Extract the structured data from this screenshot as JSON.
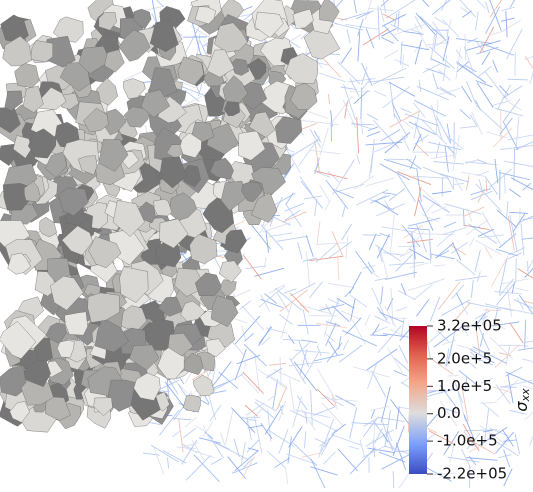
{
  "colorbar": {
    "label": "σ",
    "label_sub": "xx",
    "range": [
      -220000,
      320000
    ],
    "ticks": [
      {
        "value": 320000,
        "label": "3.2e+05"
      },
      {
        "value": 200000,
        "label": "2.0e+5"
      },
      {
        "value": 100000,
        "label": "1.0e+5"
      },
      {
        "value": 0,
        "label": "0.0"
      },
      {
        "value": -100000,
        "label": "-1.0e+5"
      },
      {
        "value": -220000,
        "label": "-2.2e+05"
      }
    ]
  }
}
